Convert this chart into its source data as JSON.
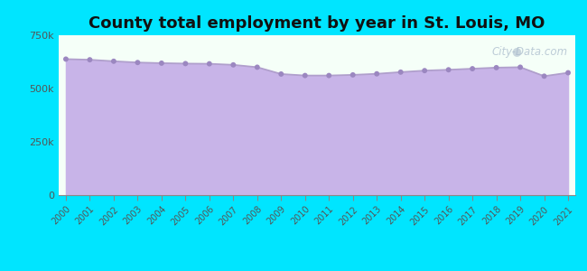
{
  "title": "County total employment by year in St. Louis, MO",
  "years": [
    2000,
    2001,
    2002,
    2003,
    2004,
    2005,
    2006,
    2007,
    2008,
    2009,
    2010,
    2011,
    2012,
    2013,
    2014,
    2015,
    2016,
    2017,
    2018,
    2019,
    2020,
    2021
  ],
  "values": [
    638000,
    635000,
    628000,
    622000,
    619000,
    617000,
    616000,
    611000,
    600000,
    568000,
    561000,
    561000,
    564000,
    569000,
    577000,
    584000,
    588000,
    593000,
    598000,
    600000,
    558000,
    574000
  ],
  "line_color": "#b09fcc",
  "fill_color": "#c8b4e8",
  "fill_alpha": 1.0,
  "marker_color": "#9b87c0",
  "marker_size": 18,
  "background_outer": "#00e5ff",
  "background_inner": "#f5fff8",
  "ylim": [
    0,
    750000
  ],
  "yticks": [
    0,
    250000,
    500000,
    750000
  ],
  "ytick_labels": [
    "0",
    "250k",
    "500k",
    "750k"
  ],
  "title_fontsize": 13,
  "title_color": "#111111",
  "watermark": "City-Data.com"
}
